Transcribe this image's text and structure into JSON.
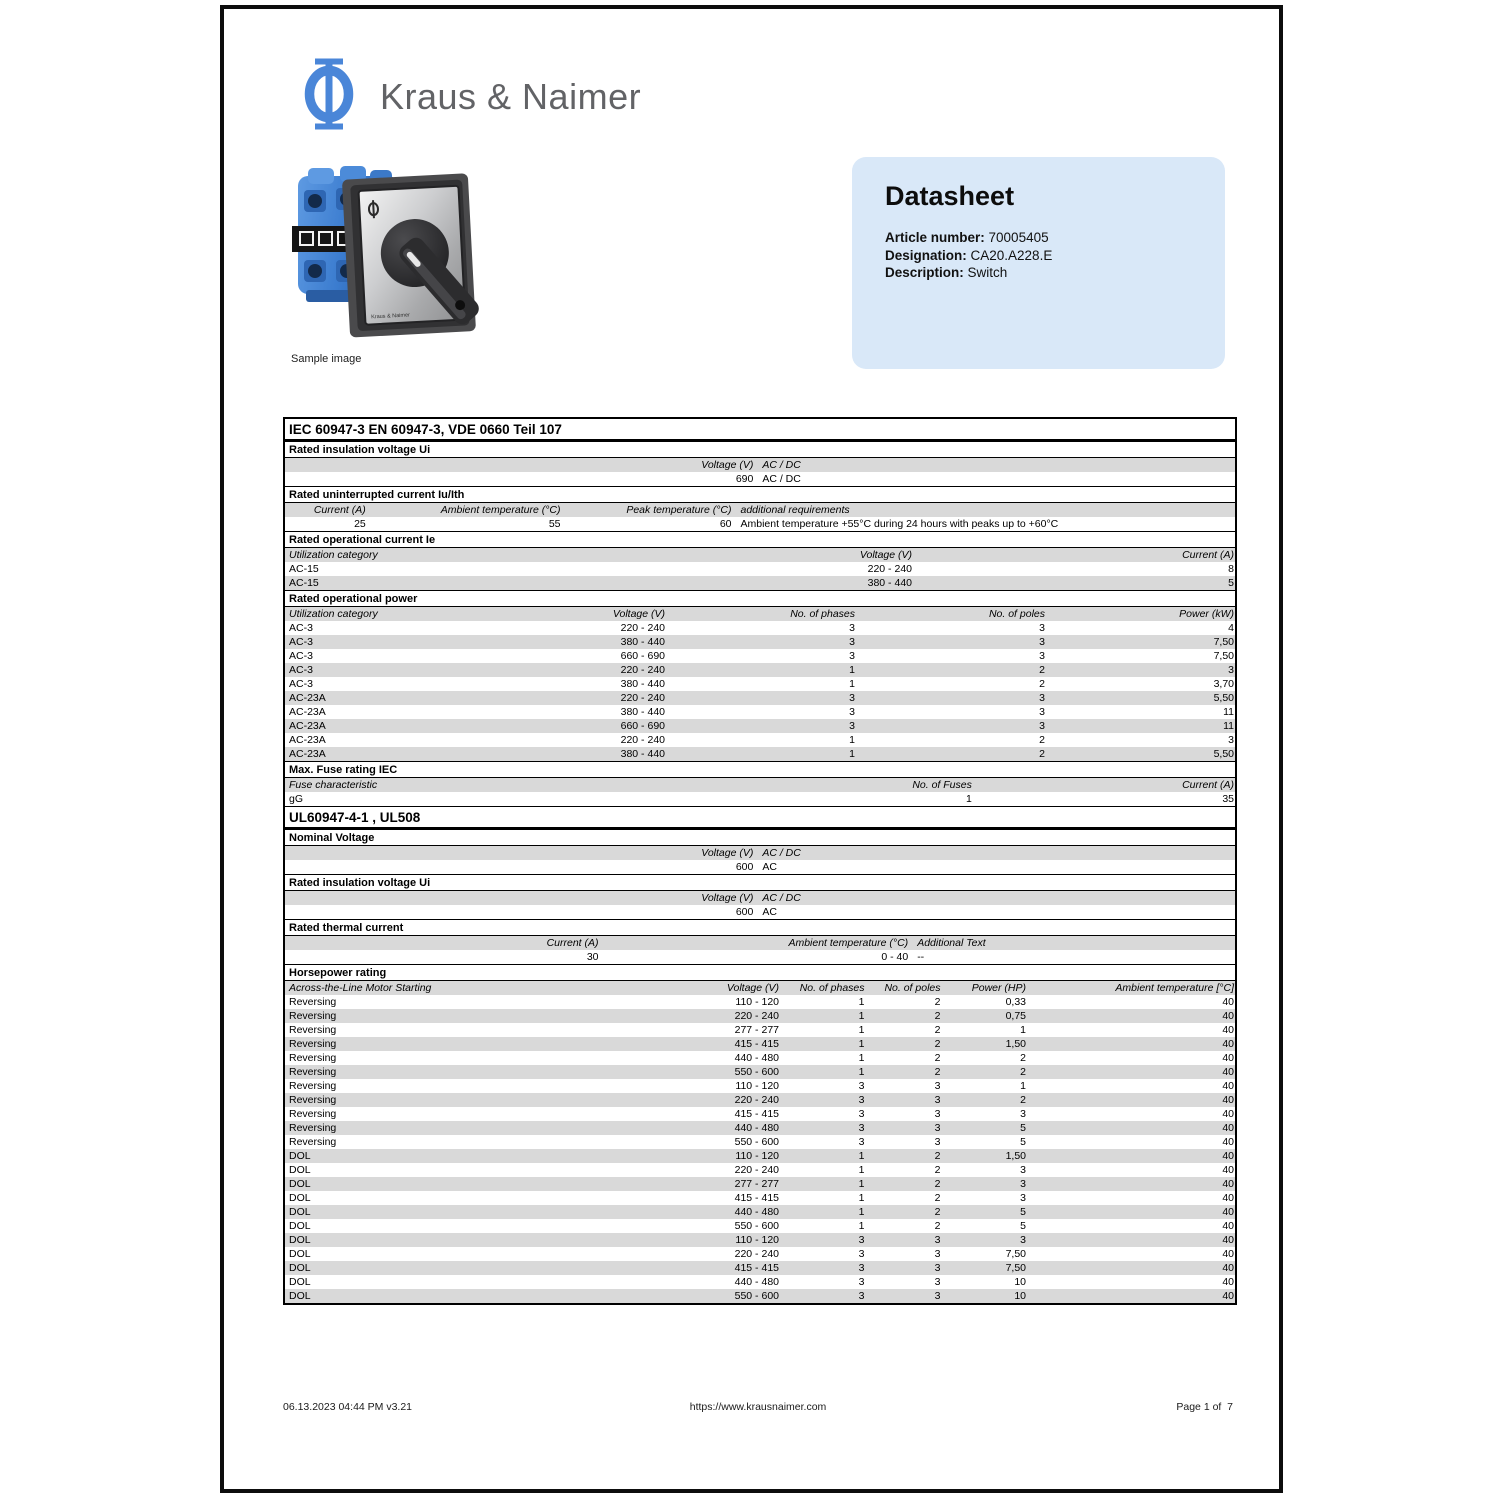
{
  "brand": {
    "logo_glyph": "phi",
    "name": "Kraus & Naimer"
  },
  "sample_caption": "Sample image",
  "infobox": {
    "title": "Datasheet",
    "fields": [
      {
        "label": "Article number:",
        "value": "70005405"
      },
      {
        "label": "Designation:",
        "value": "CA20.A228.E"
      },
      {
        "label": "Description:",
        "value": "Switch"
      }
    ]
  },
  "colors": {
    "accent_blue": "#4a86d8",
    "infobox_bg": "#d9e8f8",
    "row_shade": "#d9d9d9",
    "brand_gray": "#626366"
  },
  "footer": {
    "left": "06.13.2023 04:44 PM v3.21",
    "center": "https://www.krausnaimer.com",
    "right": "Page 1 of  7"
  },
  "table": {
    "rows": [
      {
        "t": "h1",
        "c": [
          "IEC 60947-3 EN 60947-3, VDE 0660 Teil 107"
        ]
      },
      {
        "t": "h2",
        "c": [
          "Rated insulation voltage Ui"
        ]
      },
      {
        "t": "d",
        "l": "volt",
        "s": 1,
        "i": 1,
        "c": [
          "Voltage (V)",
          "AC / DC"
        ]
      },
      {
        "t": "d",
        "l": "volt",
        "c": [
          "690",
          "AC / DC"
        ]
      },
      {
        "t": "h2",
        "c": [
          "Rated uninterrupted current Iu/Ith"
        ]
      },
      {
        "t": "d",
        "l": "iuith",
        "s": 1,
        "i": 1,
        "c": [
          "Current (A)",
          "Ambient temperature (°C)",
          "Peak temperature (°C)",
          "additional requirements"
        ]
      },
      {
        "t": "d",
        "l": "iuith",
        "c": [
          "25",
          "55",
          "60",
          "Ambient temperature +55°C during 24 hours with peaks up to +60°C"
        ]
      },
      {
        "t": "h2",
        "c": [
          "Rated operational current Ie"
        ]
      },
      {
        "t": "d",
        "l": "ie",
        "s": 1,
        "i": 1,
        "c": [
          "Utilization category",
          "Voltage (V)",
          "Current (A)"
        ]
      },
      {
        "t": "d",
        "l": "ie",
        "c": [
          "AC-15",
          "220 - 240",
          "8"
        ]
      },
      {
        "t": "d",
        "l": "ie",
        "s": 1,
        "c": [
          "AC-15",
          "380 - 440",
          "5"
        ]
      },
      {
        "t": "h2",
        "c": [
          "Rated operational power"
        ]
      },
      {
        "t": "d",
        "l": "power",
        "s": 1,
        "i": 1,
        "c": [
          "Utilization category",
          "Voltage (V)",
          "No. of phases",
          "No. of poles",
          "Power (kW)"
        ]
      },
      {
        "t": "d",
        "l": "power",
        "c": [
          "AC-3",
          "220 - 240",
          "3",
          "3",
          "4"
        ]
      },
      {
        "t": "d",
        "l": "power",
        "s": 1,
        "c": [
          "AC-3",
          "380 - 440",
          "3",
          "3",
          "7,50"
        ]
      },
      {
        "t": "d",
        "l": "power",
        "c": [
          "AC-3",
          "660 - 690",
          "3",
          "3",
          "7,50"
        ]
      },
      {
        "t": "d",
        "l": "power",
        "s": 1,
        "c": [
          "AC-3",
          "220 - 240",
          "1",
          "2",
          "3"
        ]
      },
      {
        "t": "d",
        "l": "power",
        "c": [
          "AC-3",
          "380 - 440",
          "1",
          "2",
          "3,70"
        ]
      },
      {
        "t": "d",
        "l": "power",
        "s": 1,
        "c": [
          "AC-23A",
          "220 - 240",
          "3",
          "3",
          "5,50"
        ]
      },
      {
        "t": "d",
        "l": "power",
        "c": [
          "AC-23A",
          "380 - 440",
          "3",
          "3",
          "11"
        ]
      },
      {
        "t": "d",
        "l": "power",
        "s": 1,
        "c": [
          "AC-23A",
          "660 - 690",
          "3",
          "3",
          "11"
        ]
      },
      {
        "t": "d",
        "l": "power",
        "c": [
          "AC-23A",
          "220 - 240",
          "1",
          "2",
          "3"
        ]
      },
      {
        "t": "d",
        "l": "power",
        "s": 1,
        "c": [
          "AC-23A",
          "380 - 440",
          "1",
          "2",
          "5,50"
        ]
      },
      {
        "t": "h2",
        "c": [
          "Max. Fuse rating IEC"
        ]
      },
      {
        "t": "d",
        "l": "fuse",
        "s": 1,
        "i": 1,
        "c": [
          "Fuse characteristic",
          "No. of Fuses",
          "Current (A)"
        ]
      },
      {
        "t": "d",
        "l": "fuse",
        "c": [
          "gG",
          "1",
          "35"
        ]
      },
      {
        "t": "h1",
        "c": [
          "UL60947-4-1 , UL508"
        ]
      },
      {
        "t": "h2",
        "c": [
          "Nominal Voltage"
        ]
      },
      {
        "t": "d",
        "l": "volt",
        "s": 1,
        "i": 1,
        "c": [
          "Voltage (V)",
          "AC / DC"
        ]
      },
      {
        "t": "d",
        "l": "volt",
        "c": [
          "600",
          "AC"
        ]
      },
      {
        "t": "h2",
        "c": [
          "Rated insulation voltage Ui"
        ]
      },
      {
        "t": "d",
        "l": "volt",
        "s": 1,
        "i": 1,
        "c": [
          "Voltage (V)",
          "AC / DC"
        ]
      },
      {
        "t": "d",
        "l": "volt",
        "c": [
          "600",
          "AC"
        ]
      },
      {
        "t": "h2",
        "c": [
          "Rated thermal current"
        ]
      },
      {
        "t": "d",
        "l": "thermal",
        "s": 1,
        "i": 1,
        "c": [
          "Current (A)",
          "Ambient temperature (°C)",
          "Additional Text"
        ]
      },
      {
        "t": "d",
        "l": "thermal",
        "c": [
          "30",
          "0 - 40",
          "--"
        ]
      },
      {
        "t": "h2",
        "c": [
          "Horsepower rating"
        ]
      },
      {
        "t": "d",
        "l": "hp",
        "s": 1,
        "i": 1,
        "c": [
          "Across-the-Line Motor Starting",
          "Voltage (V)",
          "No. of phases",
          "No. of poles",
          "Power (HP)",
          "Ambient temperature [°C]"
        ]
      },
      {
        "t": "d",
        "l": "hp",
        "c": [
          "Reversing",
          "110 - 120",
          "1",
          "2",
          "0,33",
          "40"
        ]
      },
      {
        "t": "d",
        "l": "hp",
        "s": 1,
        "c": [
          "Reversing",
          "220 - 240",
          "1",
          "2",
          "0,75",
          "40"
        ]
      },
      {
        "t": "d",
        "l": "hp",
        "c": [
          "Reversing",
          "277 - 277",
          "1",
          "2",
          "1",
          "40"
        ]
      },
      {
        "t": "d",
        "l": "hp",
        "s": 1,
        "c": [
          "Reversing",
          "415 - 415",
          "1",
          "2",
          "1,50",
          "40"
        ]
      },
      {
        "t": "d",
        "l": "hp",
        "c": [
          "Reversing",
          "440 - 480",
          "1",
          "2",
          "2",
          "40"
        ]
      },
      {
        "t": "d",
        "l": "hp",
        "s": 1,
        "c": [
          "Reversing",
          "550 - 600",
          "1",
          "2",
          "2",
          "40"
        ]
      },
      {
        "t": "d",
        "l": "hp",
        "c": [
          "Reversing",
          "110 - 120",
          "3",
          "3",
          "1",
          "40"
        ]
      },
      {
        "t": "d",
        "l": "hp",
        "s": 1,
        "c": [
          "Reversing",
          "220 - 240",
          "3",
          "3",
          "2",
          "40"
        ]
      },
      {
        "t": "d",
        "l": "hp",
        "c": [
          "Reversing",
          "415 - 415",
          "3",
          "3",
          "3",
          "40"
        ]
      },
      {
        "t": "d",
        "l": "hp",
        "s": 1,
        "c": [
          "Reversing",
          "440 - 480",
          "3",
          "3",
          "5",
          "40"
        ]
      },
      {
        "t": "d",
        "l": "hp",
        "c": [
          "Reversing",
          "550 - 600",
          "3",
          "3",
          "5",
          "40"
        ]
      },
      {
        "t": "d",
        "l": "hp",
        "s": 1,
        "c": [
          "DOL",
          "110 - 120",
          "1",
          "2",
          "1,50",
          "40"
        ]
      },
      {
        "t": "d",
        "l": "hp",
        "c": [
          "DOL",
          "220 - 240",
          "1",
          "2",
          "3",
          "40"
        ]
      },
      {
        "t": "d",
        "l": "hp",
        "s": 1,
        "c": [
          "DOL",
          "277 - 277",
          "1",
          "2",
          "3",
          "40"
        ]
      },
      {
        "t": "d",
        "l": "hp",
        "c": [
          "DOL",
          "415 - 415",
          "1",
          "2",
          "3",
          "40"
        ]
      },
      {
        "t": "d",
        "l": "hp",
        "s": 1,
        "c": [
          "DOL",
          "440 - 480",
          "1",
          "2",
          "5",
          "40"
        ]
      },
      {
        "t": "d",
        "l": "hp",
        "c": [
          "DOL",
          "550 - 600",
          "1",
          "2",
          "5",
          "40"
        ]
      },
      {
        "t": "d",
        "l": "hp",
        "s": 1,
        "c": [
          "DOL",
          "110 - 120",
          "3",
          "3",
          "3",
          "40"
        ]
      },
      {
        "t": "d",
        "l": "hp",
        "c": [
          "DOL",
          "220 - 240",
          "3",
          "3",
          "7,50",
          "40"
        ]
      },
      {
        "t": "d",
        "l": "hp",
        "s": 1,
        "c": [
          "DOL",
          "415 - 415",
          "3",
          "3",
          "7,50",
          "40"
        ]
      },
      {
        "t": "d",
        "l": "hp",
        "c": [
          "DOL",
          "440 - 480",
          "3",
          "3",
          "10",
          "40"
        ]
      },
      {
        "t": "d",
        "l": "hp",
        "s": 1,
        "c": [
          "DOL",
          "550 - 600",
          "3",
          "3",
          "10",
          "40"
        ]
      }
    ]
  }
}
